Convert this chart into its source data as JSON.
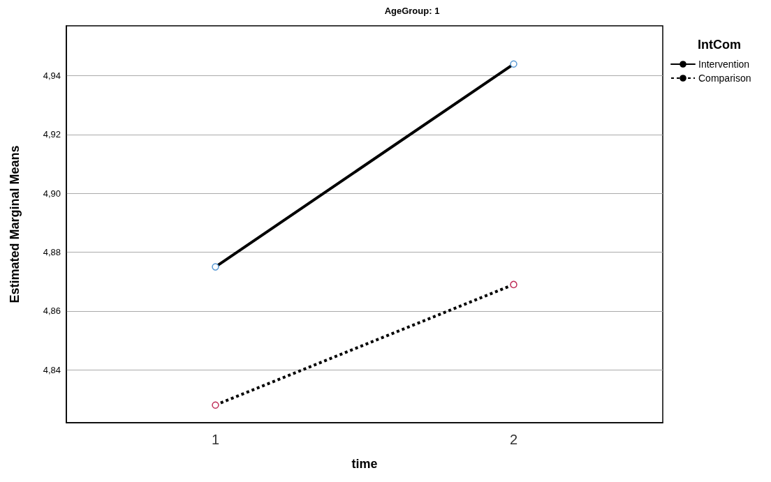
{
  "chart_data": {
    "type": "line",
    "title": "AgeGroup: 1",
    "xlabel": "time",
    "ylabel": "Estimated Marginal Means",
    "legend_title": "IntCom",
    "categories": [
      "1",
      "2"
    ],
    "series": [
      {
        "name": "Intervention",
        "color": "#000000",
        "colors": [
          "#5b9bd5",
          "#5b9bd5"
        ],
        "line_style": "solid",
        "values": [
          4.875,
          4.944
        ]
      },
      {
        "name": "Comparison",
        "color": "#000000",
        "colors": [
          "#c0305a",
          "#c0305a"
        ],
        "line_style": "dotted",
        "values": [
          4.828,
          4.869
        ]
      }
    ],
    "ylim": [
      4.822,
      4.957
    ],
    "yticks": [
      {
        "value": 4.84,
        "label": "4,84"
      },
      {
        "value": 4.86,
        "label": "4,86"
      },
      {
        "value": 4.88,
        "label": "4,88"
      },
      {
        "value": 4.9,
        "label": "4,90"
      },
      {
        "value": 4.92,
        "label": "4,92"
      },
      {
        "value": 4.94,
        "label": "4,94"
      }
    ],
    "grid": "y",
    "legend": "top right",
    "marker": "circle"
  }
}
